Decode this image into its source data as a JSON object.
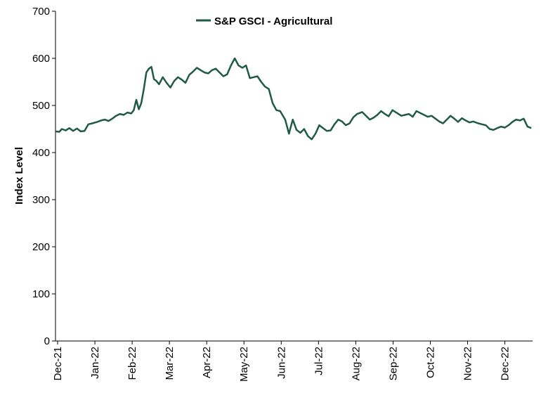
{
  "chart_data": {
    "type": "line",
    "title": "",
    "xlabel": "",
    "ylabel": "Index Level",
    "ylim": [
      0,
      700
    ],
    "yticks": [
      0,
      100,
      200,
      300,
      400,
      500,
      600,
      700
    ],
    "grid": false,
    "legend_position": "top",
    "x_tick_labels": [
      "Dec-21",
      "Jan-22",
      "Feb-22",
      "Mar-22",
      "Apr-22",
      "May-22",
      "Jun-22",
      "Jul-22",
      "Aug-22",
      "Sep-22",
      "Oct-22",
      "Nov-22",
      "Dec-22"
    ],
    "series": [
      {
        "name": "S&P GSCI - Agricultural",
        "color": "#1f5a44",
        "x": [
          "2021-12-01",
          "2021-12-04",
          "2021-12-06",
          "2021-12-09",
          "2021-12-12",
          "2021-12-15",
          "2021-12-18",
          "2021-12-21",
          "2021-12-24",
          "2021-12-27",
          "2021-12-30",
          "2022-01-03",
          "2022-01-06",
          "2022-01-09",
          "2022-01-12",
          "2022-01-15",
          "2022-01-18",
          "2022-01-21",
          "2022-01-24",
          "2022-01-27",
          "2022-01-30",
          "2022-02-01",
          "2022-02-03",
          "2022-02-05",
          "2022-02-07",
          "2022-02-09",
          "2022-02-11",
          "2022-02-13",
          "2022-02-15",
          "2022-02-17",
          "2022-02-19",
          "2022-02-21",
          "2022-02-24",
          "2022-02-27",
          "2022-03-02",
          "2022-03-05",
          "2022-03-08",
          "2022-03-11",
          "2022-03-14",
          "2022-03-17",
          "2022-03-20",
          "2022-03-23",
          "2022-03-26",
          "2022-03-29",
          "2022-04-01",
          "2022-04-04",
          "2022-04-07",
          "2022-04-10",
          "2022-04-13",
          "2022-04-16",
          "2022-04-19",
          "2022-04-22",
          "2022-04-25",
          "2022-04-28",
          "2022-05-01",
          "2022-05-04",
          "2022-05-07",
          "2022-05-10",
          "2022-05-13",
          "2022-05-16",
          "2022-05-19",
          "2022-05-22",
          "2022-05-25",
          "2022-05-28",
          "2022-06-01",
          "2022-06-04",
          "2022-06-07",
          "2022-06-10",
          "2022-06-13",
          "2022-06-16",
          "2022-06-19",
          "2022-06-22",
          "2022-06-25",
          "2022-06-28",
          "2022-07-01",
          "2022-07-04",
          "2022-07-07",
          "2022-07-10",
          "2022-07-13",
          "2022-07-16",
          "2022-07-19",
          "2022-07-22",
          "2022-07-25",
          "2022-07-28",
          "2022-08-01",
          "2022-08-04",
          "2022-08-07",
          "2022-08-10",
          "2022-08-13",
          "2022-08-16",
          "2022-08-19",
          "2022-08-22",
          "2022-08-25",
          "2022-08-28",
          "2022-09-01",
          "2022-09-04",
          "2022-09-07",
          "2022-09-10",
          "2022-09-13",
          "2022-09-16",
          "2022-09-19",
          "2022-09-22",
          "2022-09-25",
          "2022-09-28",
          "2022-10-01",
          "2022-10-04",
          "2022-10-07",
          "2022-10-10",
          "2022-10-13",
          "2022-10-16",
          "2022-10-19",
          "2022-10-22",
          "2022-10-25",
          "2022-10-28",
          "2022-11-01",
          "2022-11-04",
          "2022-11-07",
          "2022-11-10",
          "2022-11-13",
          "2022-11-16",
          "2022-11-19",
          "2022-11-22",
          "2022-11-25",
          "2022-11-28",
          "2022-12-01",
          "2022-12-04",
          "2022-12-07",
          "2022-12-10",
          "2022-12-13"
        ],
        "values": [
          445,
          444,
          450,
          447,
          452,
          446,
          451,
          445,
          446,
          460,
          462,
          465,
          468,
          470,
          467,
          472,
          478,
          482,
          480,
          485,
          483,
          490,
          512,
          492,
          505,
          535,
          570,
          578,
          582,
          556,
          552,
          545,
          560,
          548,
          538,
          552,
          560,
          555,
          548,
          565,
          572,
          580,
          575,
          570,
          568,
          575,
          578,
          570,
          562,
          566,
          585,
          600,
          585,
          580,
          585,
          558,
          560,
          562,
          550,
          540,
          535,
          505,
          490,
          488,
          470,
          440,
          470,
          448,
          442,
          450,
          435,
          428,
          440,
          458,
          452,
          446,
          447,
          460,
          470,
          466,
          458,
          462,
          475,
          482,
          486,
          478,
          470,
          474,
          480,
          488,
          482,
          477,
          490,
          485,
          478,
          480,
          482,
          476,
          488,
          484,
          480,
          476,
          478,
          472,
          466,
          462,
          470,
          478,
          472,
          465,
          473,
          468,
          464,
          466,
          462,
          460,
          458,
          450,
          448,
          452,
          455,
          453,
          458,
          465,
          470,
          468,
          472,
          455,
          452
        ]
      }
    ]
  }
}
